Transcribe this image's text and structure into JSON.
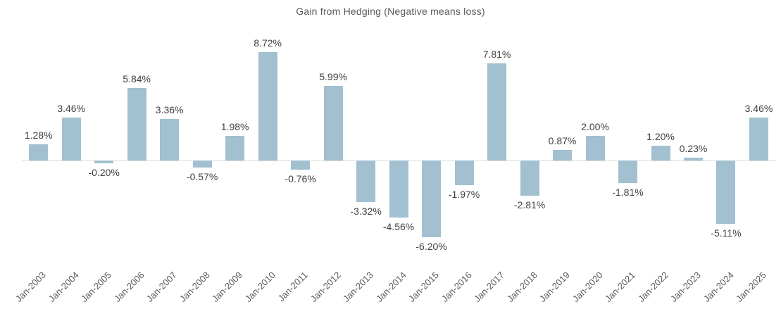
{
  "chart_data": {
    "type": "bar",
    "title": "Gain from Hedging (Negative means loss)",
    "categories": [
      "Jan-2003",
      "Jan-2004",
      "Jan-2005",
      "Jan-2006",
      "Jan-2007",
      "Jan-2008",
      "Jan-2009",
      "Jan-2010",
      "Jan-2011",
      "Jan-2012",
      "Jan-2013",
      "Jan-2014",
      "Jan-2015",
      "Jan-2016",
      "Jan-2017",
      "Jan-2018",
      "Jan-2019",
      "Jan-2020",
      "Jan-2021",
      "Jan-2022",
      "Jan-2023",
      "Jan-2024",
      "Jan-2025"
    ],
    "values": [
      1.28,
      3.46,
      -0.2,
      5.84,
      3.36,
      -0.57,
      1.98,
      8.72,
      -0.76,
      5.99,
      -3.32,
      -4.56,
      -6.2,
      -1.97,
      7.81,
      -2.81,
      0.87,
      2.0,
      -1.81,
      1.2,
      0.23,
      -5.11,
      3.46
    ],
    "labels": [
      "1.28%",
      "3.46%",
      "-0.20%",
      "5.84%",
      "3.36%",
      "-0.57%",
      "1.98%",
      "8.72%",
      "-0.76%",
      "5.99%",
      "-3.32%",
      "-4.56%",
      "-6.20%",
      "-1.97%",
      "7.81%",
      "-2.81%",
      "0.87%",
      "2.00%",
      "-1.81%",
      "1.20%",
      "0.23%",
      "-5.11%",
      "3.46%"
    ],
    "xlabel": "",
    "ylabel": "",
    "ylim": [
      -6.5,
      9.0
    ],
    "grid": false,
    "legend": false,
    "bar_color": "#a2c0d0",
    "axis_line_color": "#dcdcdc",
    "data_label_color": "#404040",
    "tick_label_color": "#595959",
    "title_color": "#595959"
  }
}
